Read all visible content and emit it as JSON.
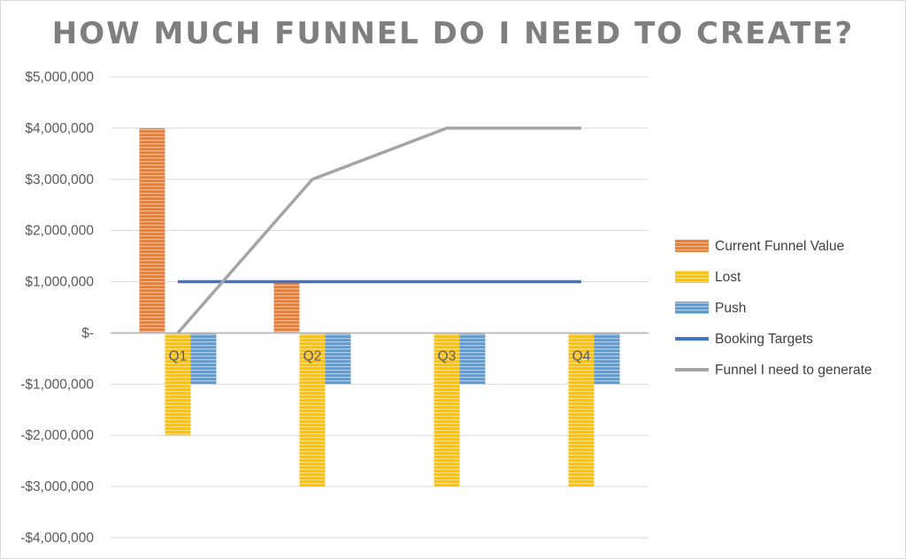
{
  "chart_data": {
    "type": "bar",
    "title": "HOW MUCH FUNNEL DO I NEED TO CREATE?",
    "categories": [
      "Q1",
      "Q2",
      "Q3",
      "Q4"
    ],
    "ylim": [
      -4000000,
      5000000
    ],
    "yticks": [
      5000000,
      4000000,
      3000000,
      2000000,
      1000000,
      0,
      -1000000,
      -2000000,
      -3000000,
      -4000000
    ],
    "ytick_labels": [
      "$5,000,000",
      "$4,000,000",
      "$3,000,000",
      "$2,000,000",
      "$1,000,000",
      "$-",
      "-$1,000,000",
      "-$2,000,000",
      "-$3,000,000",
      "-$4,000,000"
    ],
    "grid": true,
    "legend_position": "right",
    "series": [
      {
        "name": "Current Funnel Value",
        "type": "bar",
        "color": "#ed7d31",
        "values": [
          4000000,
          1000000,
          0,
          0
        ]
      },
      {
        "name": "Lost",
        "type": "bar",
        "color": "#ffc000",
        "values": [
          -2000000,
          -3000000,
          -3000000,
          -3000000
        ]
      },
      {
        "name": "Push",
        "type": "bar",
        "color": "#5b9bd5",
        "values": [
          -1000000,
          -1000000,
          -1000000,
          -1000000
        ]
      },
      {
        "name": "Booking Targets",
        "type": "line",
        "color": "#4472c4",
        "values": [
          1000000,
          1000000,
          1000000,
          1000000
        ]
      },
      {
        "name": "Funnel I need to generate",
        "type": "line",
        "color": "#a5a5a5",
        "values": [
          0,
          3000000,
          4000000,
          4000000
        ]
      }
    ]
  }
}
